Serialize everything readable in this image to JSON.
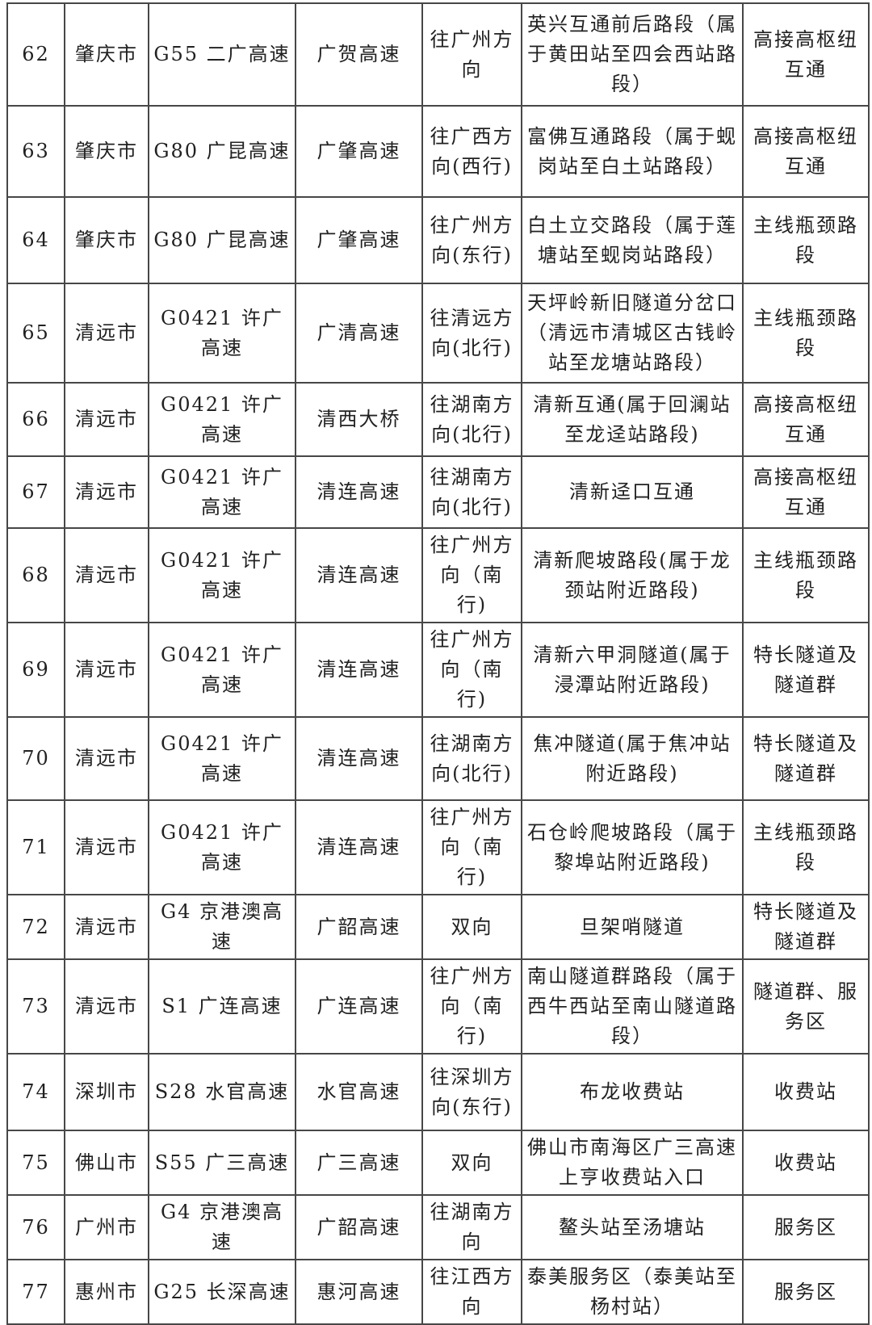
{
  "table": {
    "rows": [
      {
        "no": "62",
        "city": "肇庆市",
        "highway": "G55 二广高速",
        "route": "广贺高速",
        "direction": "往广州方向",
        "section": "英兴互通前后路段（属于黄田站至四会西站路段）",
        "type": "高接高枢纽互通"
      },
      {
        "no": "63",
        "city": "肇庆市",
        "highway": "G80 广昆高速",
        "route": "广肇高速",
        "direction": "往广西方向(西行)",
        "section": "富佛互通路段（属于蚬岗站至白土站路段）",
        "type": "高接高枢纽互通"
      },
      {
        "no": "64",
        "city": "肇庆市",
        "highway": "G80 广昆高速",
        "route": "广肇高速",
        "direction": "往广州方向(东行)",
        "section": "白土立交路段（属于莲塘站至蚬岗站路段）",
        "type": "主线瓶颈路段"
      },
      {
        "no": "65",
        "city": "清远市",
        "highway": "G0421 许广高速",
        "route": "广清高速",
        "direction": "往清远方向(北行)",
        "section": "天坪岭新旧隧道分岔口（清远市清城区古钱岭站至龙塘站路段）",
        "type": "主线瓶颈路段"
      },
      {
        "no": "66",
        "city": "清远市",
        "highway": "G0421 许广高速",
        "route": "清西大桥",
        "direction": "往湖南方向(北行)",
        "section": "清新互通(属于回澜站至龙迳站路段)",
        "type": "高接高枢纽互通"
      },
      {
        "no": "67",
        "city": "清远市",
        "highway": "G0421 许广高速",
        "route": "清连高速",
        "direction": "往湖南方向(北行)",
        "section": "清新迳口互通",
        "type": "高接高枢纽互通"
      },
      {
        "no": "68",
        "city": "清远市",
        "highway": "G0421 许广高速",
        "route": "清连高速",
        "direction": "往广州方向（南行)",
        "section": "清新爬坡路段(属于龙颈站附近路段)",
        "type": "主线瓶颈路段"
      },
      {
        "no": "69",
        "city": "清远市",
        "highway": "G0421 许广高速",
        "route": "清连高速",
        "direction": "往广州方向（南行)",
        "section": "清新六甲洞隧道(属于浸潭站附近路段)",
        "type": "特长隧道及隧道群"
      },
      {
        "no": "70",
        "city": "清远市",
        "highway": "G0421 许广高速",
        "route": "清连高速",
        "direction": "往湖南方向(北行)",
        "section": "焦冲隧道(属于焦冲站附近路段)",
        "type": "特长隧道及隧道群"
      },
      {
        "no": "71",
        "city": "清远市",
        "highway": "G0421 许广高速",
        "route": "清连高速",
        "direction": "往广州方向（南行)",
        "section": "石仓岭爬坡路段（属于黎埠站附近路段)",
        "type": "主线瓶颈路段"
      },
      {
        "no": "72",
        "city": "清远市",
        "highway": "G4 京港澳高速",
        "route": "广韶高速",
        "direction": "双向",
        "section": "旦架哨隧道",
        "type": "特长隧道及隧道群"
      },
      {
        "no": "73",
        "city": "清远市",
        "highway": "S1 广连高速",
        "route": "广连高速",
        "direction": "往广州方向（南行)",
        "section": "南山隧道群路段（属于西牛西站至南山隧道路段）",
        "type": "隧道群、服务区"
      },
      {
        "no": "74",
        "city": "深圳市",
        "highway": "S28 水官高速",
        "route": "水官高速",
        "direction": "往深圳方向(东行)",
        "section": "布龙收费站",
        "type": "收费站"
      },
      {
        "no": "75",
        "city": "佛山市",
        "highway": "S55 广三高速",
        "route": "广三高速",
        "direction": "双向",
        "section": "佛山市南海区广三高速上亨收费站入口",
        "type": "收费站"
      },
      {
        "no": "76",
        "city": "广州市",
        "highway": "G4 京港澳高速",
        "route": "广韶高速",
        "direction": "往湖南方向",
        "section": "鳌头站至汤塘站",
        "type": "服务区"
      },
      {
        "no": "77",
        "city": "惠州市",
        "highway": "G25 长深高速",
        "route": "惠河高速",
        "direction": "往江西方向",
        "section": "泰美服务区（泰美站至杨村站）",
        "type": "服务区"
      }
    ]
  }
}
